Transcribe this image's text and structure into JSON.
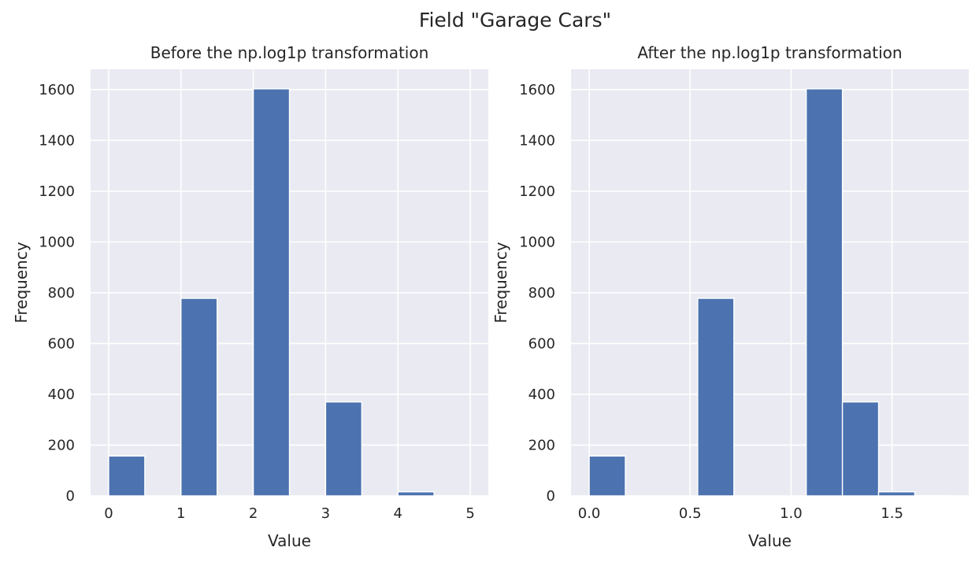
{
  "figure": {
    "suptitle": "Field \"Garage Cars\""
  },
  "colors": {
    "background": "#eaeaf2",
    "bar": "#4c72b0",
    "grid": "#ffffff",
    "text": "#262626"
  },
  "chart_data": [
    {
      "type": "bar",
      "title": "Before the np.log1p transformation",
      "xlabel": "Value",
      "ylabel": "Frequency",
      "xlim": [
        -0.25,
        5.25
      ],
      "ylim": [
        0,
        1680
      ],
      "xticks": [
        0,
        1,
        2,
        3,
        4,
        5
      ],
      "xtick_labels": [
        "0",
        "1",
        "2",
        "3",
        "4",
        "5"
      ],
      "yticks": [
        0,
        200,
        400,
        600,
        800,
        1000,
        1200,
        1400,
        1600
      ],
      "ytick_labels": [
        "0",
        "200",
        "400",
        "600",
        "800",
        "1000",
        "1200",
        "1400",
        "1600"
      ],
      "grid": true,
      "bins": [
        {
          "x0": 0.0,
          "x1": 0.5,
          "value": 157
        },
        {
          "x0": 0.5,
          "x1": 1.0,
          "value": 0
        },
        {
          "x0": 1.0,
          "x1": 1.5,
          "value": 778
        },
        {
          "x0": 1.5,
          "x1": 2.0,
          "value": 0
        },
        {
          "x0": 2.0,
          "x1": 2.5,
          "value": 1603
        },
        {
          "x0": 2.5,
          "x1": 3.0,
          "value": 0
        },
        {
          "x0": 3.0,
          "x1": 3.5,
          "value": 370
        },
        {
          "x0": 3.5,
          "x1": 4.0,
          "value": 0
        },
        {
          "x0": 4.0,
          "x1": 4.5,
          "value": 16
        },
        {
          "x0": 4.5,
          "x1": 5.0,
          "value": 1
        }
      ]
    },
    {
      "type": "bar",
      "title": "After the np.log1p transformation",
      "xlabel": "Value",
      "ylabel": "Frequency",
      "xlim": [
        -0.09,
        1.88
      ],
      "ylim": [
        0,
        1680
      ],
      "xticks": [
        0.0,
        0.5,
        1.0,
        1.5
      ],
      "xtick_labels": [
        "0.0",
        "0.5",
        "1.0",
        "1.5"
      ],
      "yticks": [
        0,
        200,
        400,
        600,
        800,
        1000,
        1200,
        1400,
        1600
      ],
      "ytick_labels": [
        "0",
        "200",
        "400",
        "600",
        "800",
        "1000",
        "1200",
        "1400",
        "1600"
      ],
      "grid": true,
      "bins": [
        {
          "x0": 0.0,
          "x1": 0.1792,
          "value": 157
        },
        {
          "x0": 0.1792,
          "x1": 0.3584,
          "value": 0
        },
        {
          "x0": 0.3584,
          "x1": 0.5375,
          "value": 0
        },
        {
          "x0": 0.5375,
          "x1": 0.7167,
          "value": 778
        },
        {
          "x0": 0.7167,
          "x1": 0.8959,
          "value": 0
        },
        {
          "x0": 0.8959,
          "x1": 1.0751,
          "value": 0
        },
        {
          "x0": 1.0751,
          "x1": 1.2543,
          "value": 1603
        },
        {
          "x0": 1.2543,
          "x1": 1.4334,
          "value": 370
        },
        {
          "x0": 1.4334,
          "x1": 1.6126,
          "value": 16
        },
        {
          "x0": 1.6126,
          "x1": 1.7918,
          "value": 1
        }
      ]
    }
  ]
}
